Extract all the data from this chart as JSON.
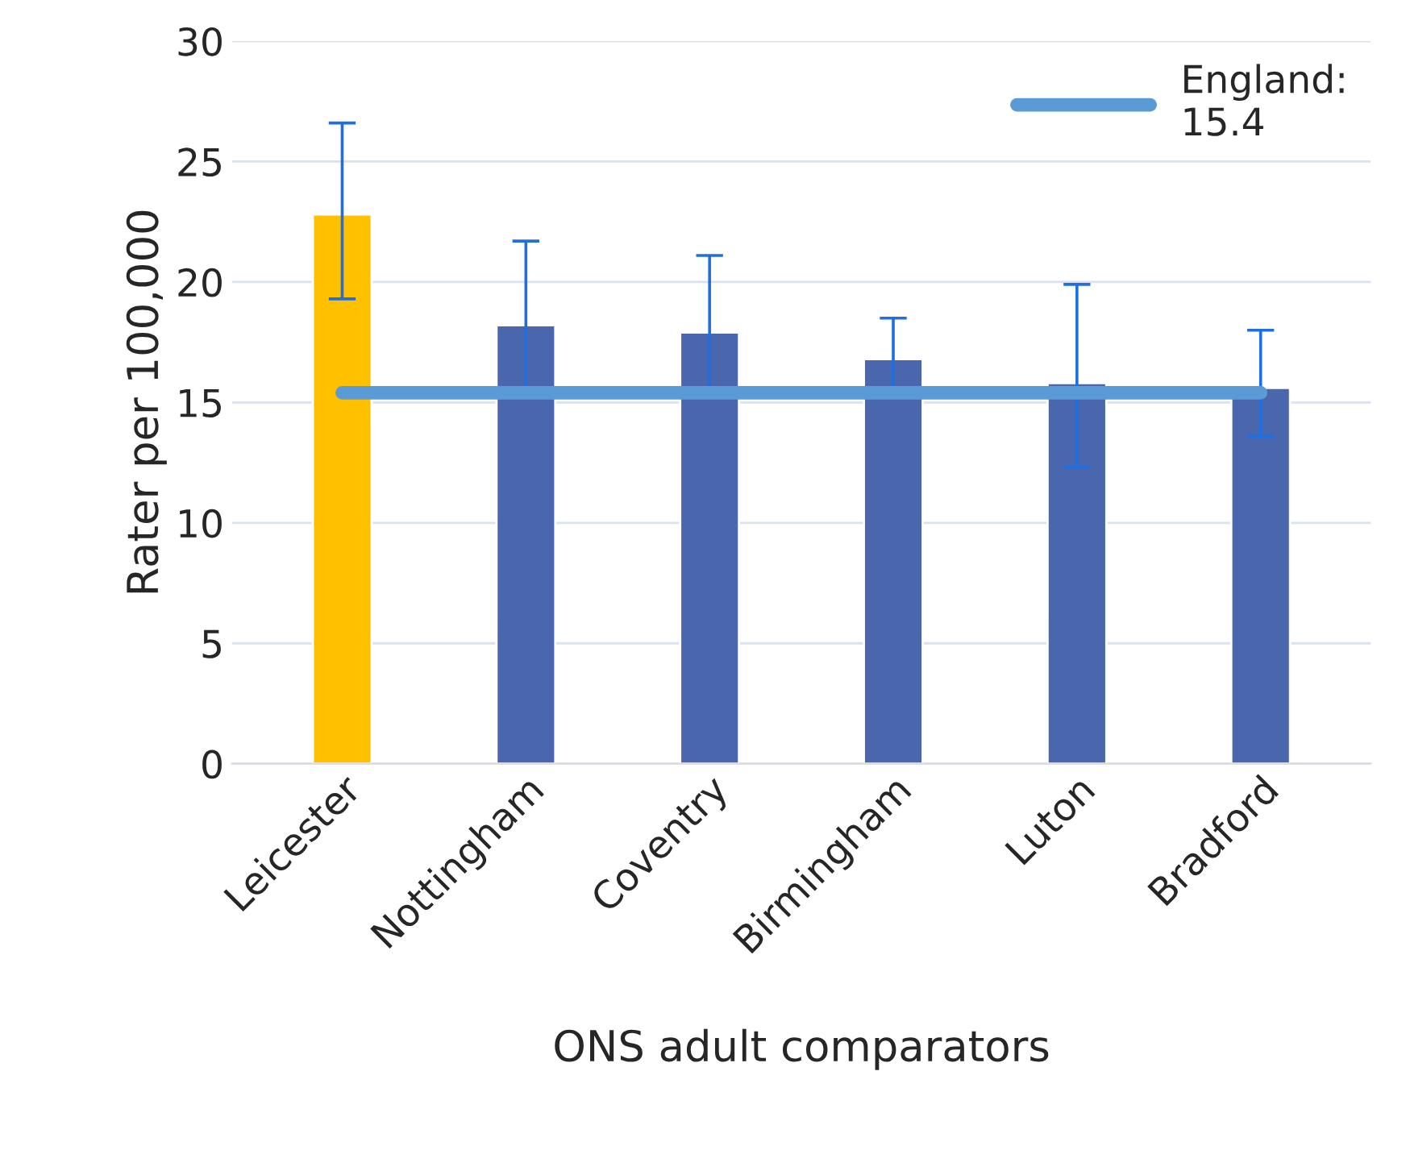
{
  "chart_data": {
    "type": "bar",
    "xlabel": "ONS adult comparators",
    "ylabel": "Rater per 100,000",
    "categories": [
      "Leicester",
      "Nottingham",
      "Coventry",
      "Birmingham",
      "Luton",
      "Bradford"
    ],
    "series": [
      {
        "colors": [
          "#ffc000",
          "#4a66ac",
          "#4a66ac",
          "#4a66ac",
          "#4a66ac",
          "#4a66ac"
        ],
        "values": [
          22.8,
          18.2,
          17.9,
          16.8,
          15.8,
          15.6
        ],
        "errors": [
          [
            19.3,
            26.6
          ],
          [
            15.2,
            21.7
          ],
          [
            15.2,
            21.1
          ],
          [
            15.3,
            18.5
          ],
          [
            12.3,
            19.9
          ],
          [
            13.6,
            18.0
          ]
        ]
      },
      {
        "type": "line",
        "name": "England:\n15.4",
        "color": "#5b9bd5",
        "values": [
          15.4,
          15.4,
          15.4,
          15.4,
          15.4,
          15.4
        ]
      }
    ],
    "ylim": [
      0,
      30
    ],
    "yticks": [
      0,
      5,
      10,
      15,
      20,
      25,
      30
    ],
    "grid": "y",
    "legend": "top right"
  }
}
